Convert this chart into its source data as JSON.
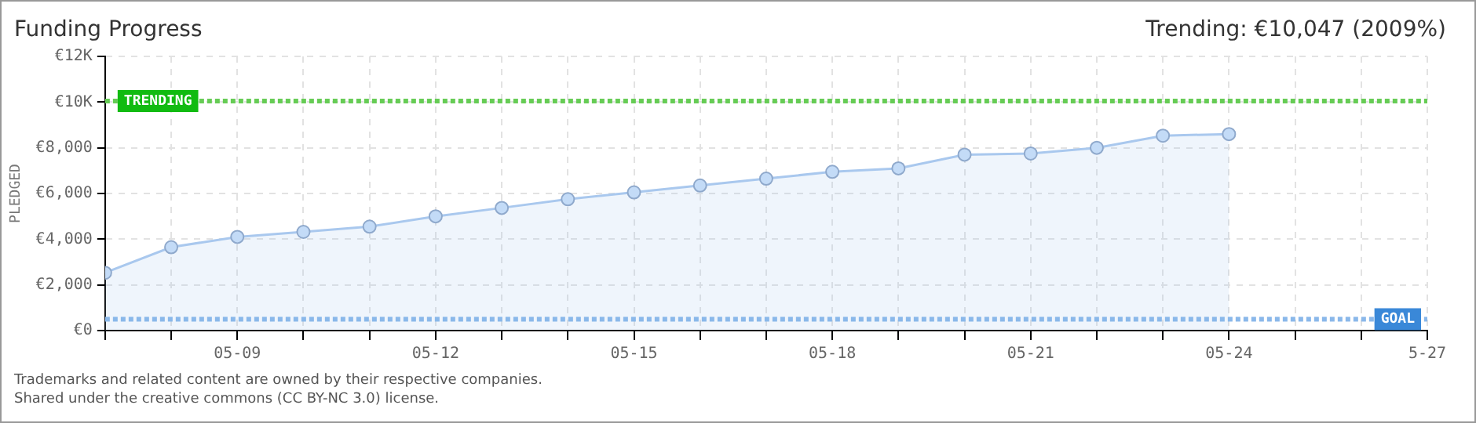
{
  "chart_data": {
    "type": "area",
    "title": "Funding Progress",
    "subtitle": "Trending: €10,047 (2009%)",
    "ylabel": "PLEDGED",
    "x": [
      "--05-07",
      "--05-08",
      "--05-09",
      "--05-10",
      "--05-11",
      "--05-12",
      "--05-13",
      "--05-14",
      "--05-15",
      "--05-16",
      "--05-17",
      "--05-18",
      "--05-19",
      "--05-20",
      "--05-21",
      "--05-22",
      "--05-23",
      "--05-24"
    ],
    "series": [
      {
        "color": "#a9c8ee",
        "values": [
          2530,
          3650,
          4100,
          4320,
          4550,
          5000,
          5370,
          5750,
          6050,
          6350,
          6650,
          6950,
          7100,
          7700,
          7750,
          8000,
          8530,
          8600
        ]
      }
    ],
    "xlim": [
      "--05-07",
      "--05-27"
    ],
    "xticks": [
      {
        "value": "--05-07",
        "label": null
      },
      {
        "value": "--05-08",
        "label": null
      },
      {
        "value": "--05-09",
        "label": "05-09"
      },
      {
        "value": "--05-10",
        "label": null
      },
      {
        "value": "--05-11",
        "label": null
      },
      {
        "value": "--05-12",
        "label": "05-12"
      },
      {
        "value": "--05-13",
        "label": null
      },
      {
        "value": "--05-14",
        "label": null
      },
      {
        "value": "--05-15",
        "label": "05-15"
      },
      {
        "value": "--05-16",
        "label": null
      },
      {
        "value": "--05-17",
        "label": null
      },
      {
        "value": "--05-18",
        "label": "05-18"
      },
      {
        "value": "--05-19",
        "label": null
      },
      {
        "value": "--05-20",
        "label": null
      },
      {
        "value": "--05-21",
        "label": "05-21"
      },
      {
        "value": "--05-22",
        "label": null
      },
      {
        "value": "--05-23",
        "label": null
      },
      {
        "value": "--05-24",
        "label": "05-24"
      },
      {
        "value": "--05-25",
        "label": null
      },
      {
        "value": "--05-26",
        "label": null
      },
      {
        "value": "--05-27",
        "label": "5-27"
      }
    ],
    "ylim": [
      0,
      12000
    ],
    "yticks": [
      {
        "value": 0,
        "label": "€0"
      },
      {
        "value": 2000,
        "label": "€2,000"
      },
      {
        "value": 4000,
        "label": "€4,000"
      },
      {
        "value": 6000,
        "label": "€6,000"
      },
      {
        "value": 8000,
        "label": "€8,000"
      },
      {
        "value": 10000,
        "label": "€10K"
      },
      {
        "value": 12000,
        "label": "€12K"
      }
    ],
    "ref_lines": [
      {
        "axis": "y",
        "value": 10047,
        "label": "TRENDING",
        "color": "#66cc55",
        "line_style": "dotted"
      },
      {
        "axis": "y",
        "value": 500,
        "label": "GOAL",
        "color": "#8ab8ea",
        "line_style": "dotted"
      }
    ],
    "grid": true,
    "marker": "circle",
    "legend": false,
    "annotations": [
      "Trademarks and related content are owned by their respective companies.",
      "Shared under the creative commons (CC BY-NC 3.0) license."
    ]
  }
}
